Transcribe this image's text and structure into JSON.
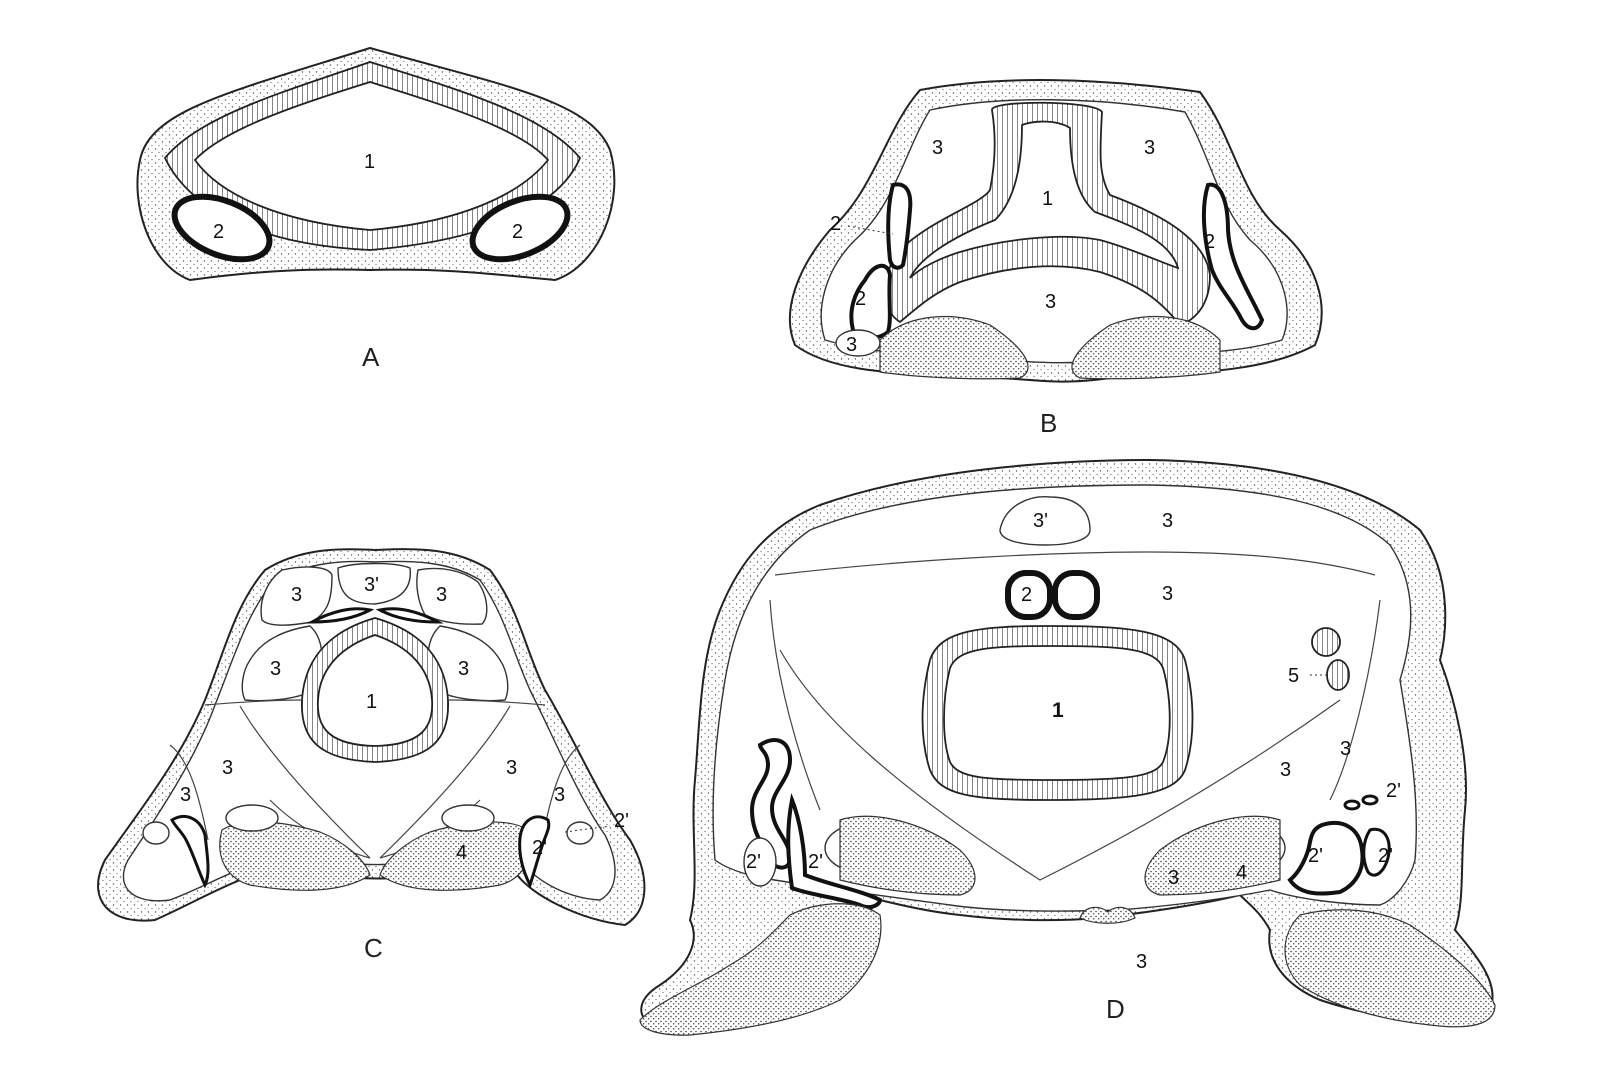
{
  "figure": {
    "panels": [
      {
        "id": "A",
        "label": "A",
        "parts": [
          {
            "key": "lumen",
            "text": "1"
          },
          {
            "key": "left-cavity",
            "text": "2"
          },
          {
            "key": "right-cavity",
            "text": "2"
          }
        ]
      },
      {
        "id": "B",
        "label": "B",
        "parts": [
          {
            "key": "lumen",
            "text": "1"
          },
          {
            "key": "upper-left-mass",
            "text": "3"
          },
          {
            "key": "upper-right-mass",
            "text": "3"
          },
          {
            "key": "lower-mass",
            "text": "3"
          },
          {
            "key": "left-duct-upper",
            "text": "2"
          },
          {
            "key": "left-duct-lower",
            "text": "2"
          },
          {
            "key": "right-duct",
            "text": "2"
          },
          {
            "key": "left-small-mass",
            "text": "3"
          }
        ]
      },
      {
        "id": "C",
        "label": "C",
        "parts": [
          {
            "key": "lumen",
            "text": "1"
          },
          {
            "key": "top-left-mass",
            "text": "3"
          },
          {
            "key": "top-center-mass",
            "text": "3'"
          },
          {
            "key": "top-right-mass",
            "text": "3"
          },
          {
            "key": "mid-left-mass",
            "text": "3"
          },
          {
            "key": "mid-right-mass",
            "text": "3"
          },
          {
            "key": "lower-left-mass",
            "text": "3"
          },
          {
            "key": "lower-right-mass",
            "text": "3"
          },
          {
            "key": "lateral-left-mass",
            "text": "3"
          },
          {
            "key": "lateral-right-mass",
            "text": "3"
          },
          {
            "key": "right-duct",
            "text": "2'"
          },
          {
            "key": "right-duct-callout",
            "text": "2'"
          },
          {
            "key": "dense-mass",
            "text": "4"
          }
        ]
      },
      {
        "id": "D",
        "label": "D",
        "parts": [
          {
            "key": "lumen",
            "text": "1"
          },
          {
            "key": "dorsal-mass",
            "text": "3'"
          },
          {
            "key": "dorsal-right",
            "text": "3"
          },
          {
            "key": "mid-right",
            "text": "3"
          },
          {
            "key": "paired-tubes",
            "text": "2"
          },
          {
            "key": "small-vessels",
            "text": "5"
          },
          {
            "key": "lower-right-a",
            "text": "3"
          },
          {
            "key": "lower-right-b",
            "text": "3"
          },
          {
            "key": "right-duct-callout",
            "text": "2'"
          },
          {
            "key": "left-duct-a",
            "text": "2'"
          },
          {
            "key": "left-duct-b",
            "text": "2'"
          },
          {
            "key": "right-duct-a",
            "text": "2'"
          },
          {
            "key": "right-duct-b",
            "text": "2'"
          },
          {
            "key": "ventral-small",
            "text": "3"
          },
          {
            "key": "ventral-mass",
            "text": "4"
          },
          {
            "key": "bottom-mass",
            "text": "3"
          }
        ]
      }
    ]
  },
  "colors": {
    "ink": "#111111",
    "paper": "#ffffff"
  }
}
